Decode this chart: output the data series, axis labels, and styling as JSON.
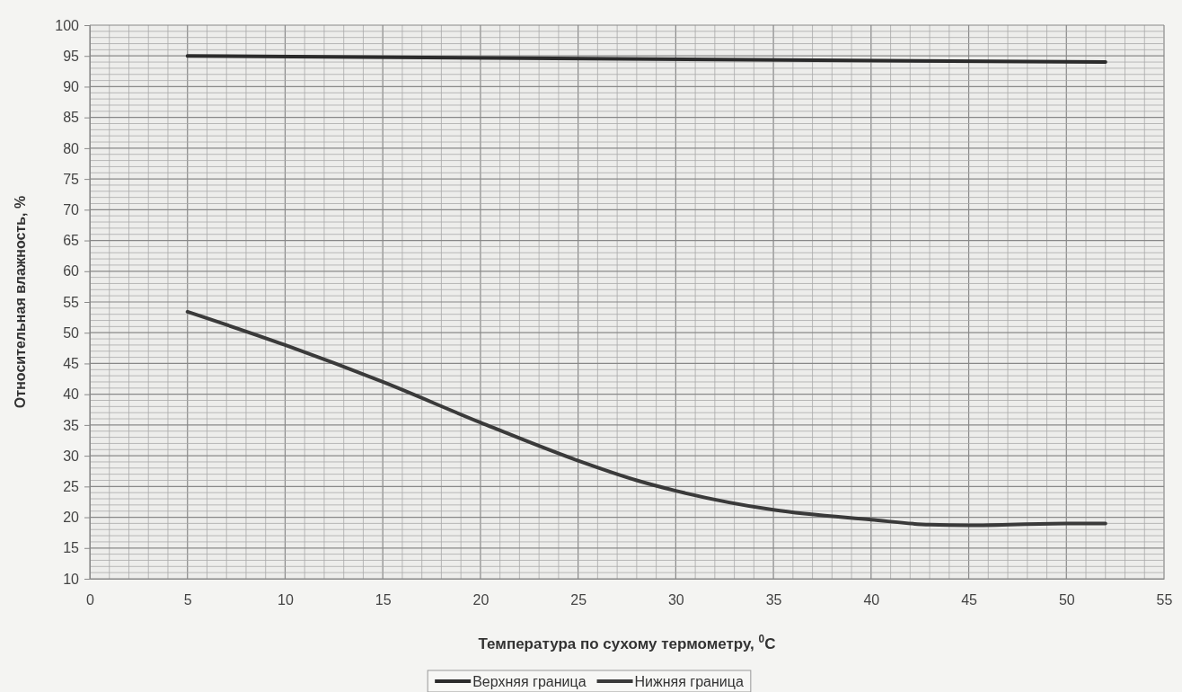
{
  "chart_data": {
    "type": "line",
    "xlabel": "Температура по сухому термометру, $^{0}$C",
    "ylabel": "Относительная влажность, %",
    "xlim": [
      0,
      55
    ],
    "xticks": [
      0,
      5,
      10,
      15,
      20,
      25,
      30,
      35,
      40,
      45,
      50,
      55
    ],
    "ylim": [
      10,
      100
    ],
    "yticks": [
      10,
      15,
      20,
      25,
      30,
      35,
      40,
      45,
      50,
      55,
      60,
      65,
      70,
      75,
      80,
      85,
      90,
      95,
      100
    ],
    "grid": true,
    "legend": "bottom",
    "marker": "none",
    "line_style": "solid",
    "series": [
      {
        "name": "Верхняя граница",
        "color": "#2b2b2b",
        "x": [
          5,
          52
        ],
        "values": [
          95,
          94
        ]
      },
      {
        "name": "Нижняя граница",
        "color": "#3a3a3a",
        "x": [
          5,
          10,
          15,
          20,
          25,
          28,
          30,
          35,
          40,
          43,
          45,
          50,
          52
        ],
        "values": [
          53.4,
          48,
          42,
          35.4,
          29.2,
          26,
          24.3,
          21.2,
          19.6,
          18.8,
          18.7,
          19,
          19
        ]
      }
    ]
  }
}
